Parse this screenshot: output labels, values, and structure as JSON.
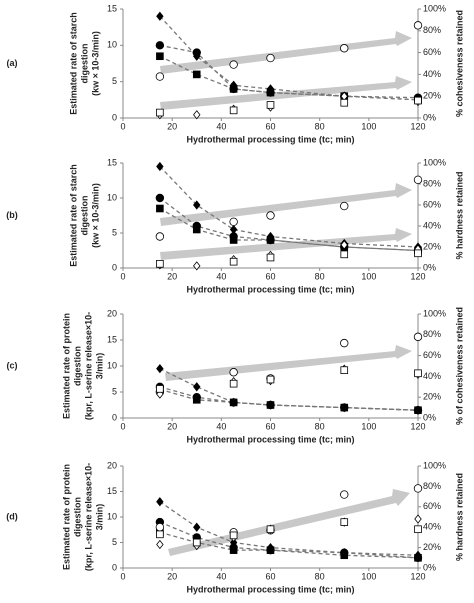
{
  "chart_data": [
    {
      "type": "scatter",
      "panel": "(a)",
      "xlabel": "Hydrothermal processing time (tc; min)",
      "ylabel_lines": [
        "Estimated rate of starch",
        "digestion",
        "(kw × 10-3/min)"
      ],
      "y2label": "% cohesiveness retained",
      "x": [
        15,
        30,
        45,
        60,
        90,
        120
      ],
      "xlim": [
        0,
        120
      ],
      "xticks": [
        0,
        20,
        40,
        60,
        80,
        100,
        120
      ],
      "ylim": [
        0,
        15
      ],
      "yticks": [
        0,
        5,
        10,
        15
      ],
      "y2lim": [
        0,
        100
      ],
      "y2ticks": [
        {
          "value": 0,
          "label": "0%"
        },
        {
          "value": 20,
          "label": "20%"
        },
        {
          "value": 40,
          "label": "40%"
        },
        {
          "value": 60,
          "label": "60%"
        },
        {
          "value": 80,
          "label": "80%"
        },
        {
          "value": 100,
          "label": "100%"
        }
      ],
      "series": [
        {
          "marker": "diamond",
          "filled": true,
          "line": "dashed",
          "values": [
            14,
            8.5,
            4.5,
            4,
            3,
            2.5
          ]
        },
        {
          "marker": "circle",
          "filled": true,
          "line": "dashed",
          "values": [
            10,
            9,
            4,
            3.5,
            3,
            2.8
          ]
        },
        {
          "marker": "square",
          "filled": true,
          "line": "dashed",
          "values": [
            8.5,
            6,
            4,
            3.5,
            3,
            2.5
          ]
        },
        {
          "marker": "circle",
          "filled": false,
          "axis": "y2",
          "values": [
            38,
            null,
            49,
            55,
            64,
            85
          ]
        },
        {
          "marker": "diamond",
          "filled": false,
          "axis": "y2",
          "values": [
            3,
            3,
            8,
            10,
            20,
            15
          ]
        },
        {
          "marker": "square",
          "filled": false,
          "axis": "y2",
          "values": [
            5,
            null,
            7,
            12,
            14,
            16
          ]
        }
      ]
    },
    {
      "type": "scatter",
      "panel": "(b)",
      "xlabel": "Hydrothermal processing time (tc; min)",
      "ylabel_lines": [
        "Estimated rate of starch",
        "digestion",
        "(kw × 10-3/min)"
      ],
      "y2label": "% hardness retained",
      "x": [
        15,
        30,
        45,
        60,
        90,
        120
      ],
      "xlim": [
        0,
        120
      ],
      "xticks": [
        0,
        20,
        40,
        60,
        80,
        100,
        120
      ],
      "ylim": [
        0,
        15
      ],
      "yticks": [
        0,
        5,
        10,
        15
      ],
      "y2lim": [
        0,
        100
      ],
      "y2ticks": [
        {
          "value": 0,
          "label": "0%"
        },
        {
          "value": 20,
          "label": "20%"
        },
        {
          "value": 40,
          "label": "40%"
        },
        {
          "value": 60,
          "label": "60%"
        },
        {
          "value": 80,
          "label": "80%"
        },
        {
          "value": 100,
          "label": "100%"
        }
      ],
      "series": [
        {
          "marker": "diamond",
          "filled": true,
          "line": "dashed",
          "values": [
            14.5,
            9,
            5.5,
            4.5,
            3.5,
            3
          ]
        },
        {
          "marker": "circle",
          "filled": true,
          "line": "dashed",
          "values": [
            10,
            6,
            4.5,
            4,
            3,
            2.5
          ]
        },
        {
          "marker": "square",
          "filled": true,
          "line": "dashed",
          "values": [
            8.5,
            5.5,
            4,
            4,
            3,
            2.5
          ]
        },
        {
          "marker": "circle",
          "filled": false,
          "axis": "y2",
          "values": [
            30,
            null,
            44,
            50,
            59,
            84
          ]
        },
        {
          "marker": "diamond",
          "filled": false,
          "axis": "y2",
          "values": [
            3,
            2,
            8,
            12,
            22,
            18
          ]
        },
        {
          "marker": "square",
          "filled": false,
          "axis": "y2",
          "values": [
            4,
            null,
            6,
            10,
            13,
            14
          ]
        }
      ]
    },
    {
      "type": "scatter",
      "panel": "(c)",
      "xlabel": "Hydrothermal processing time (tc; min)",
      "ylabel_lines": [
        "Estimated rate of protein",
        "digestion",
        "(kpr, L-serine release×10-",
        "3/min)"
      ],
      "y2label": "% of cohesiveness retained",
      "x": [
        15,
        30,
        45,
        60,
        90,
        120
      ],
      "xlim": [
        0,
        120
      ],
      "xticks": [
        0,
        20,
        40,
        60,
        80,
        100,
        120
      ],
      "ylim": [
        0,
        20
      ],
      "yticks": [
        0,
        5,
        10,
        15,
        20
      ],
      "y2lim": [
        0,
        100
      ],
      "y2ticks": [
        {
          "value": 0,
          "label": "0%"
        },
        {
          "value": 20,
          "label": "20%"
        },
        {
          "value": 40,
          "label": "40%"
        },
        {
          "value": 60,
          "label": "60%"
        },
        {
          "value": 80,
          "label": "80%"
        },
        {
          "value": 100,
          "label": "100%"
        }
      ],
      "series": [
        {
          "marker": "diamond",
          "filled": true,
          "line": "dashed",
          "values": [
            9.5,
            6,
            3,
            2.5,
            2,
            1.5
          ]
        },
        {
          "marker": "circle",
          "filled": true,
          "line": "dashed",
          "values": [
            6,
            4,
            3,
            2.5,
            2,
            1.5
          ]
        },
        {
          "marker": "square",
          "filled": true,
          "line": "dashed",
          "values": [
            5.5,
            3.5,
            3,
            2.5,
            2,
            1.5
          ]
        },
        {
          "marker": "circle",
          "filled": false,
          "axis": "y2",
          "values": [
            25,
            null,
            44,
            38,
            72,
            78
          ]
        },
        {
          "marker": "diamond",
          "filled": false,
          "axis": "y2",
          "values": [
            23,
            null,
            35,
            36,
            47,
            42
          ]
        },
        {
          "marker": "square",
          "filled": false,
          "axis": "y2",
          "values": [
            28,
            null,
            33,
            37,
            46,
            43
          ]
        }
      ]
    },
    {
      "type": "scatter",
      "panel": "(d)",
      "xlabel": "Hydrothermal processing time (tc; min)",
      "ylabel_lines": [
        "Estimated rate of protein",
        "digestion",
        "(kpr, L-serine release×10-",
        "3/min)"
      ],
      "y2label": "% hardness retained",
      "x": [
        15,
        30,
        45,
        60,
        90,
        120
      ],
      "xlim": [
        0,
        120
      ],
      "xticks": [
        0,
        20,
        40,
        60,
        80,
        100,
        120
      ],
      "ylim": [
        0,
        20
      ],
      "yticks": [
        0,
        5,
        10,
        15,
        20
      ],
      "y2lim": [
        0,
        100
      ],
      "y2ticks": [
        {
          "value": 0,
          "label": "0%"
        },
        {
          "value": 20,
          "label": "20%"
        },
        {
          "value": 40,
          "label": "40%"
        },
        {
          "value": 60,
          "label": "60%"
        },
        {
          "value": 80,
          "label": "80%"
        },
        {
          "value": 100,
          "label": "100%"
        }
      ],
      "series": [
        {
          "marker": "diamond",
          "filled": true,
          "line": "dashed",
          "values": [
            13,
            8,
            5,
            4,
            3,
            2.5
          ]
        },
        {
          "marker": "circle",
          "filled": true,
          "line": "dashed",
          "values": [
            9,
            6,
            4,
            3.5,
            3,
            2
          ]
        },
        {
          "marker": "square",
          "filled": true,
          "line": "dashed",
          "values": [
            7,
            5,
            3.5,
            3.5,
            2.5,
            2
          ]
        },
        {
          "marker": "circle",
          "filled": false,
          "axis": "y2",
          "values": [
            40,
            null,
            35,
            37,
            72,
            78
          ]
        },
        {
          "marker": "diamond",
          "filled": false,
          "axis": "y2",
          "values": [
            23,
            22,
            30,
            38,
            45,
            48
          ]
        },
        {
          "marker": "square",
          "filled": false,
          "axis": "y2",
          "values": [
            33,
            25,
            32,
            38,
            45,
            38
          ]
        }
      ]
    }
  ]
}
